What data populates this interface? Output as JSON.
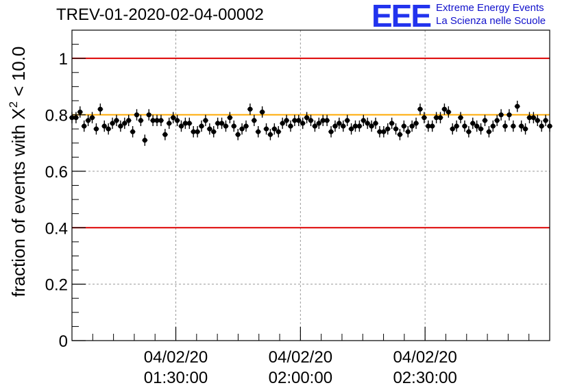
{
  "header": {
    "run_title": "TREV-01-2020-02-04-00002",
    "logo_mark": "EEE",
    "logo_line1": "Extreme Energy Events",
    "logo_line2": "La Scienza nelle Scuole"
  },
  "colors": {
    "threshold_line": "#dd0000",
    "mean_line": "#ffaa00",
    "marker": "#000000",
    "logo": "#2233ee"
  },
  "chart_data": {
    "type": "scatter",
    "title": "TREV-01-2020-02-04-00002",
    "xlabel": "",
    "ylabel_prefix": "fraction of events with ",
    "ylabel_symbol": "Χ",
    "ylabel_exponent": "2",
    "ylabel_suffix": " < 10.0",
    "x_axis_type": "time",
    "xlim": [
      "2020-02-04 01:05:00",
      "2020-02-04 03:00:00"
    ],
    "ylim": [
      0,
      1.1
    ],
    "yticks": [
      "0",
      "0.2",
      "0.4",
      "0.6",
      "0.8",
      "1"
    ],
    "xticks": [
      {
        "date": "04/02/20",
        "time": "01:30:00"
      },
      {
        "date": "04/02/20",
        "time": "02:00:00"
      },
      {
        "date": "04/02/20",
        "time": "02:30:00"
      }
    ],
    "grid": true,
    "reference_lines": [
      {
        "y": 1.0,
        "color": "#dd0000"
      },
      {
        "y": 0.4,
        "color": "#dd0000"
      },
      {
        "y": 0.8,
        "color": "#ffaa00"
      }
    ],
    "error_bar": 0.02,
    "series": [
      {
        "x_start": "2020-02-04 01:05:00",
        "x_end": "2020-02-04 03:00:00",
        "values": [
          0.79,
          0.79,
          0.81,
          0.76,
          0.78,
          0.79,
          0.75,
          0.82,
          0.76,
          0.75,
          0.77,
          0.78,
          0.76,
          0.77,
          0.78,
          0.74,
          0.8,
          0.78,
          0.71,
          0.8,
          0.78,
          0.78,
          0.78,
          0.73,
          0.77,
          0.79,
          0.78,
          0.76,
          0.77,
          0.77,
          0.74,
          0.74,
          0.76,
          0.78,
          0.75,
          0.74,
          0.77,
          0.77,
          0.76,
          0.79,
          0.76,
          0.73,
          0.75,
          0.76,
          0.82,
          0.78,
          0.74,
          0.81,
          0.75,
          0.73,
          0.75,
          0.74,
          0.77,
          0.78,
          0.76,
          0.78,
          0.78,
          0.77,
          0.79,
          0.78,
          0.76,
          0.77,
          0.78,
          0.78,
          0.74,
          0.76,
          0.77,
          0.76,
          0.78,
          0.75,
          0.76,
          0.76,
          0.78,
          0.77,
          0.76,
          0.77,
          0.74,
          0.74,
          0.75,
          0.77,
          0.75,
          0.73,
          0.76,
          0.74,
          0.76,
          0.77,
          0.82,
          0.79,
          0.76,
          0.76,
          0.79,
          0.79,
          0.82,
          0.81,
          0.75,
          0.76,
          0.79,
          0.76,
          0.74,
          0.77,
          0.76,
          0.75,
          0.78,
          0.74,
          0.76,
          0.78,
          0.8,
          0.76,
          0.8,
          0.76,
          0.83,
          0.76,
          0.75,
          0.79,
          0.79,
          0.78,
          0.76,
          0.78,
          0.76
        ]
      }
    ]
  }
}
